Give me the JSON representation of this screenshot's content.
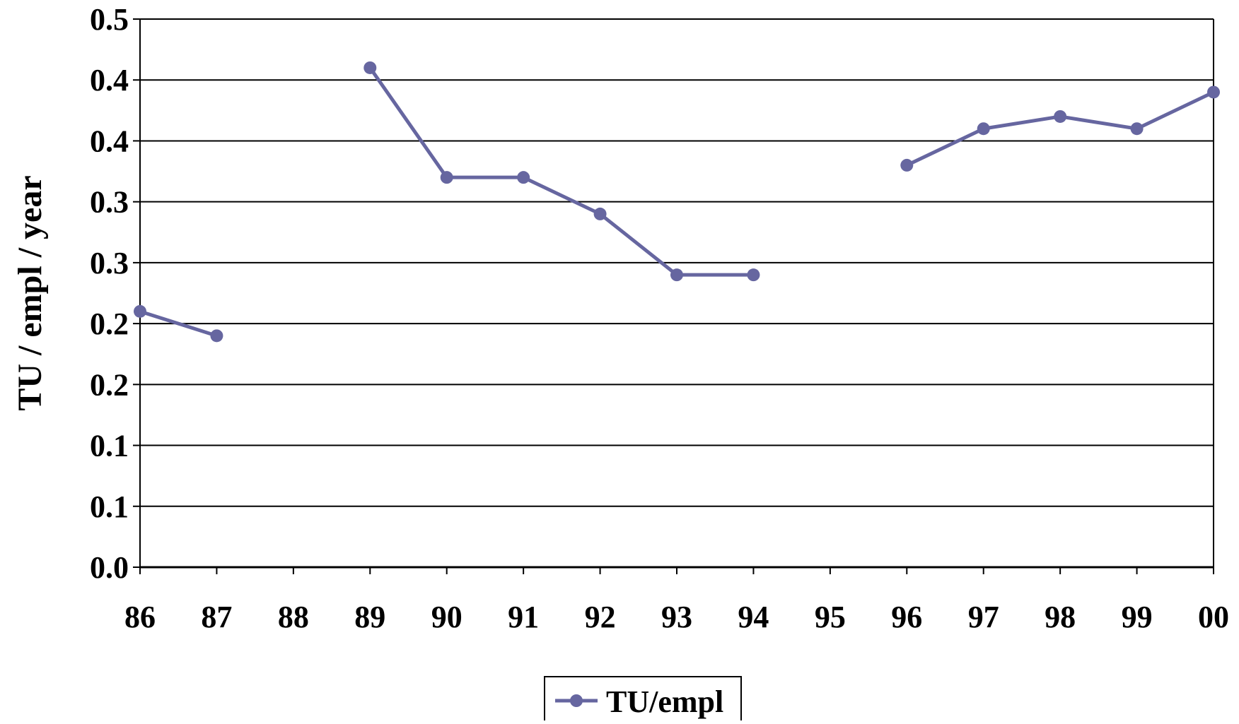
{
  "chart_data": {
    "type": "line",
    "title": "",
    "xlabel": "",
    "ylabel": "TU / empl / year",
    "categories": [
      "86",
      "87",
      "88",
      "89",
      "90",
      "91",
      "92",
      "93",
      "94",
      "95",
      "96",
      "97",
      "98",
      "99",
      "00"
    ],
    "y_tick_labels": [
      "0.0",
      "0.1",
      "0.1",
      "0.2",
      "0.2",
      "0.3",
      "0.3",
      "0.4",
      "0.4",
      "0.5"
    ],
    "ylim": [
      0,
      0.45
    ],
    "grid": true,
    "legend_position": "bottom",
    "series": [
      {
        "name": "TU/empl",
        "color": "#6666a0",
        "values": [
          0.21,
          0.19,
          null,
          0.41,
          0.32,
          0.32,
          0.29,
          0.24,
          0.24,
          null,
          0.33,
          0.36,
          0.37,
          0.36,
          0.39
        ]
      }
    ]
  }
}
